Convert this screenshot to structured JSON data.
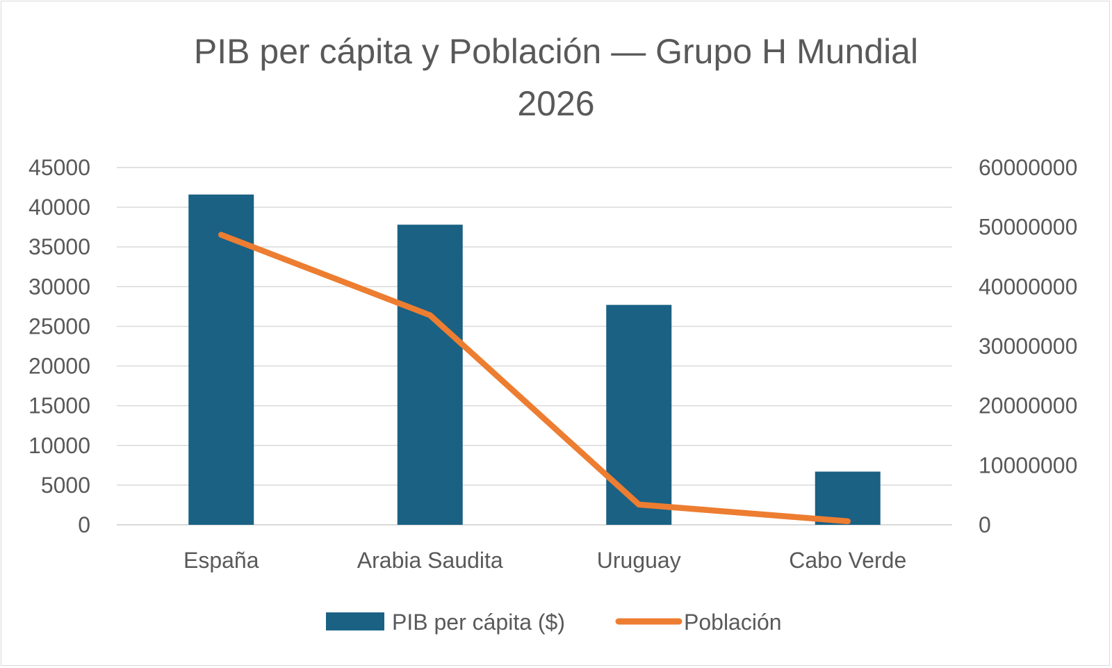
{
  "chart_data": {
    "type": "bar",
    "title": "PIB per cápita y Población — Grupo H Mundial 2026",
    "title_lines": [
      "PIB per cápita y Población — Grupo H Mundial",
      "2026"
    ],
    "categories": [
      "España",
      "Arabia Saudita",
      "Uruguay",
      "Cabo Verde"
    ],
    "series": [
      {
        "name": "PIB per cápita ($)",
        "type": "bar",
        "axis": "left",
        "color": "#1a6184",
        "values": [
          41600,
          37800,
          27700,
          6700
        ]
      },
      {
        "name": "Población",
        "type": "line",
        "axis": "right",
        "color": "#ed7d31",
        "values": [
          48700000,
          35200000,
          3400000,
          600000
        ]
      }
    ],
    "y_left": {
      "min": 0,
      "max": 45000,
      "ticks": [
        "0",
        "5000",
        "10000",
        "15000",
        "20000",
        "25000",
        "30000",
        "35000",
        "40000",
        "45000"
      ]
    },
    "y_right": {
      "min": 0,
      "max": 60000000,
      "ticks": [
        "0",
        "10000000",
        "20000000",
        "30000000",
        "40000000",
        "50000000",
        "60000000"
      ]
    },
    "grid": true,
    "gridline_color": "#d9d9d9",
    "legend": "bottom"
  }
}
